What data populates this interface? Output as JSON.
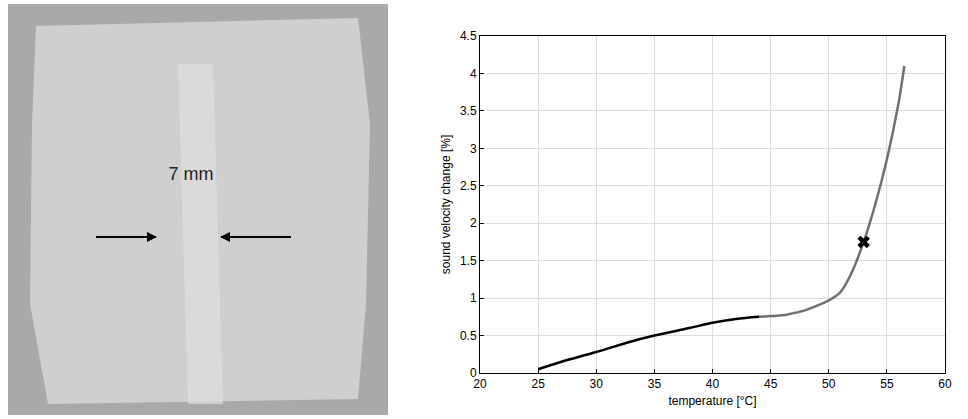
{
  "photo": {
    "annotation": "7 mm"
  },
  "chart_data": {
    "type": "line",
    "x_label": "temperature [°C]",
    "y_label": "sound velocity change [%]",
    "xlim": [
      20,
      60
    ],
    "xticks": [
      20,
      25,
      30,
      35,
      40,
      45,
      50,
      55,
      60
    ],
    "ylim": [
      0,
      4.5
    ],
    "yticks": [
      0,
      0.5,
      1,
      1.5,
      2,
      2.5,
      3,
      3.5,
      4,
      4.5
    ],
    "grid": true,
    "series": [
      {
        "type": "line",
        "color": "#000000",
        "line_style": "solid",
        "x": [
          25,
          27,
          30,
          33,
          35,
          38,
          40,
          42,
          44
        ],
        "values": [
          0.05,
          0.15,
          0.28,
          0.42,
          0.5,
          0.6,
          0.67,
          0.72,
          0.75
        ]
      },
      {
        "type": "line",
        "color": "#707070",
        "line_style": "solid",
        "x": [
          44,
          45,
          46,
          47,
          48,
          49,
          50,
          51,
          52,
          53,
          54,
          55,
          56,
          56.5
        ],
        "values": [
          0.75,
          0.76,
          0.77,
          0.8,
          0.84,
          0.9,
          0.97,
          1.08,
          1.35,
          1.75,
          2.25,
          2.85,
          3.6,
          4.1
        ]
      },
      {
        "type": "scatter",
        "color": "#000000",
        "marker": "x",
        "x": [
          53
        ],
        "values": [
          1.75
        ]
      }
    ]
  }
}
